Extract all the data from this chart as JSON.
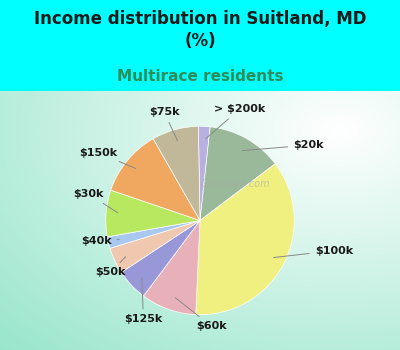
{
  "title": "Income distribution in Suitland, MD\n(%)",
  "subtitle": "Multirace residents",
  "bg_cyan": "#00FFFF",
  "bg_chart_colors": [
    "#ffffff",
    "#c8ead8",
    "#a0d8c8"
  ],
  "watermark": "City-Data.com",
  "slices": [
    {
      "label": "> $200k",
      "value": 2.0,
      "color": "#b8b0e0"
    },
    {
      "label": "$20k",
      "value": 13.0,
      "color": "#9ab89a"
    },
    {
      "label": "$100k",
      "value": 36.0,
      "color": "#f0f080"
    },
    {
      "label": "$60k",
      "value": 9.5,
      "color": "#e8b0b8"
    },
    {
      "label": "$125k",
      "value": 5.5,
      "color": "#9898d8"
    },
    {
      "label": "$50k",
      "value": 4.5,
      "color": "#f0c8b0"
    },
    {
      "label": "$40k",
      "value": 2.0,
      "color": "#a8c8f0"
    },
    {
      "label": "$30k",
      "value": 8.0,
      "color": "#b8e860"
    },
    {
      "label": "$150k",
      "value": 11.5,
      "color": "#f0a860"
    },
    {
      "label": "$75k",
      "value": 8.0,
      "color": "#c0b898"
    }
  ],
  "title_color": "#1a1a1a",
  "subtitle_color": "#2d8c5a",
  "title_fontsize": 12,
  "subtitle_fontsize": 11,
  "label_fontsize": 8,
  "startangle": 91
}
